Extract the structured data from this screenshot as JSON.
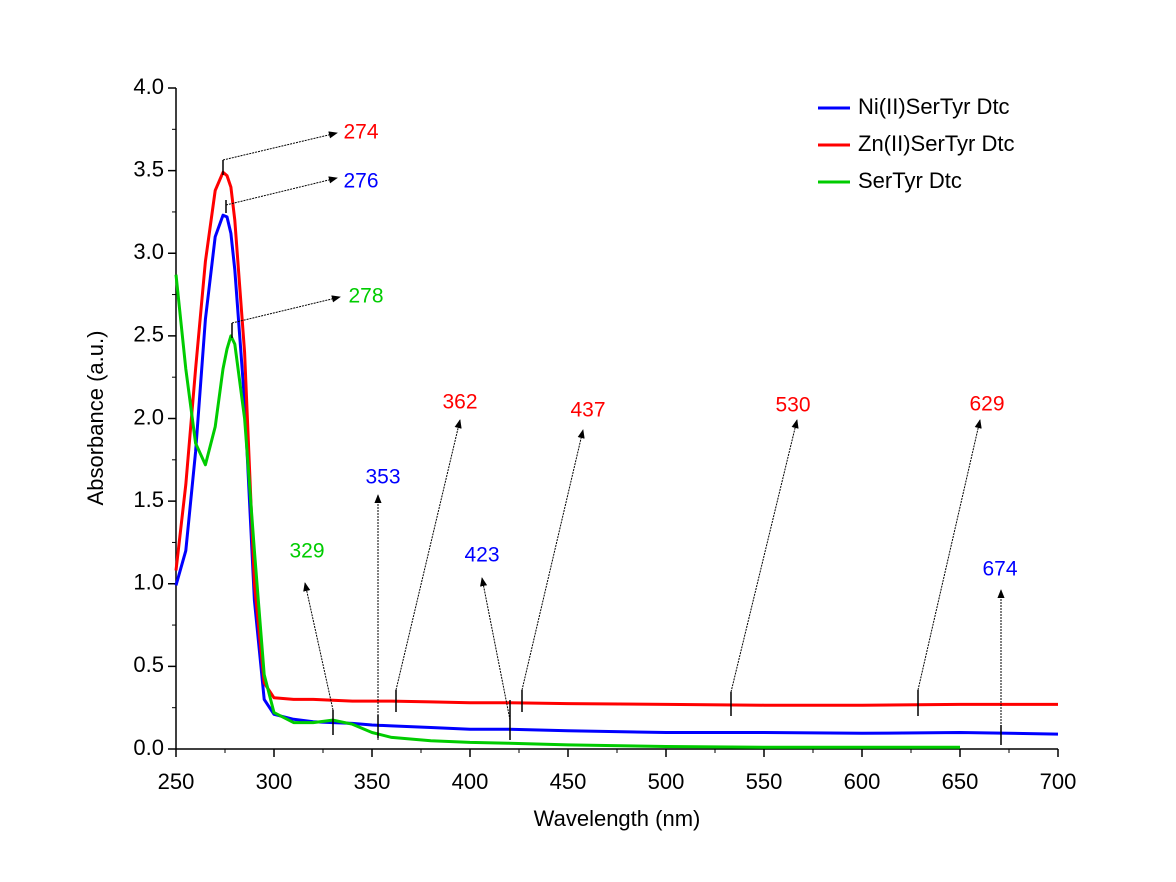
{
  "chart_data": {
    "type": "line",
    "xlabel": "Wavelength (nm)",
    "ylabel": "Absorbance (a.u.)",
    "x": [
      250,
      255,
      260,
      265,
      270,
      274,
      276,
      278,
      280,
      285,
      290,
      295,
      300,
      310,
      320,
      330,
      340,
      350,
      360,
      380,
      400,
      420,
      450,
      500,
      550,
      600,
      650,
      700
    ],
    "series": [
      {
        "name": "Ni(II)SerTyr Dtc",
        "color": "#0000ff",
        "values": [
          0.99,
          1.2,
          1.8,
          2.6,
          3.1,
          3.23,
          3.22,
          3.12,
          2.9,
          2.1,
          0.9,
          0.3,
          0.21,
          0.18,
          0.165,
          0.16,
          0.155,
          0.145,
          0.14,
          0.13,
          0.12,
          0.12,
          0.11,
          0.1,
          0.1,
          0.095,
          0.1,
          0.09
        ]
      },
      {
        "name": "Zn(II)SerTyr Dtc",
        "color": "#ff0000",
        "values": [
          1.08,
          1.6,
          2.3,
          2.95,
          3.38,
          3.49,
          3.47,
          3.4,
          3.2,
          2.4,
          1.0,
          0.4,
          0.31,
          0.3,
          0.3,
          0.295,
          0.29,
          0.29,
          0.29,
          0.285,
          0.28,
          0.28,
          0.275,
          0.27,
          0.265,
          0.265,
          0.27,
          0.27
        ]
      },
      {
        "name": "SerTyr Dtc",
        "color": "#00cc00",
        "values": [
          2.87,
          2.3,
          1.85,
          1.72,
          1.95,
          2.3,
          2.42,
          2.5,
          2.45,
          2.0,
          1.2,
          0.45,
          0.22,
          0.16,
          0.16,
          0.175,
          0.15,
          0.1,
          0.07,
          0.05,
          0.04,
          0.035,
          0.025,
          0.015,
          0.01,
          0.01,
          0.01,
          null
        ]
      }
    ],
    "xlim": [
      250,
      700
    ],
    "xticks": [
      250,
      300,
      350,
      400,
      450,
      500,
      550,
      600,
      650,
      700
    ],
    "ylim": [
      0,
      4
    ],
    "yticks": [
      {
        "value": 0,
        "label": "0.0"
      },
      {
        "value": 0.5,
        "label": "0.5"
      },
      {
        "value": 1,
        "label": "1.0"
      },
      {
        "value": 1.5,
        "label": "1.5"
      },
      {
        "value": 2,
        "label": "2.0"
      },
      {
        "value": 2.5,
        "label": "2.5"
      },
      {
        "value": 3,
        "label": "3.0"
      },
      {
        "value": 3.5,
        "label": "3.5"
      },
      {
        "value": 4,
        "label": "4.0"
      }
    ],
    "legend": "upper right",
    "annotations": [
      {
        "x": 274,
        "color": "#ff0000"
      },
      {
        "x": 276,
        "color": "#0000ff"
      },
      {
        "x": 278,
        "color": "#00cc00"
      },
      {
        "x": 329,
        "color": "#00cc00"
      },
      {
        "x": 353,
        "color": "#0000ff"
      },
      {
        "x": 362,
        "color": "#ff0000"
      },
      {
        "x": 423,
        "color": "#0000ff"
      },
      {
        "x": 437,
        "color": "#ff0000"
      },
      {
        "x": 530,
        "color": "#ff0000"
      },
      {
        "x": 629,
        "color": "#ff0000"
      },
      {
        "x": 674,
        "color": "#0000ff"
      }
    ]
  }
}
